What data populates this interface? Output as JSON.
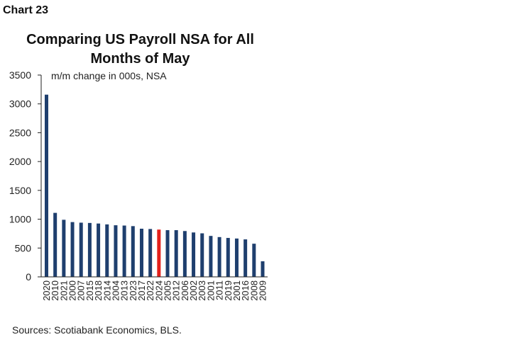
{
  "chart_label": "Chart 23",
  "source_note": "Sources: Scotiabank Economics, BLS.",
  "colors": {
    "bar": "#1f3f6e",
    "highlight": "#e3201b",
    "axis": "#222222"
  },
  "chart_data": {
    "type": "bar",
    "title": "Comparing US Payroll NSA for All Months of May",
    "ylabel": "m/m change in 000s, NSA",
    "xlabel": "",
    "ylim": [
      0,
      3500
    ],
    "yticks": [
      0,
      500,
      1000,
      1500,
      2000,
      2500,
      3000,
      3500
    ],
    "grid": false,
    "highlight_category": "2024",
    "categories": [
      "2020",
      "2010",
      "2021",
      "2000",
      "2007",
      "2015",
      "2018",
      "2014",
      "2004",
      "2013",
      "2023",
      "2017",
      "2022",
      "2024",
      "2005",
      "2012",
      "2006",
      "2002",
      "2003",
      "2001",
      "2011",
      "2019",
      "2001",
      "2016",
      "2008",
      "2009"
    ],
    "values": [
      3160,
      1110,
      990,
      950,
      940,
      935,
      925,
      910,
      895,
      890,
      880,
      835,
      830,
      820,
      810,
      810,
      795,
      770,
      755,
      710,
      690,
      675,
      665,
      650,
      575,
      270
    ]
  }
}
